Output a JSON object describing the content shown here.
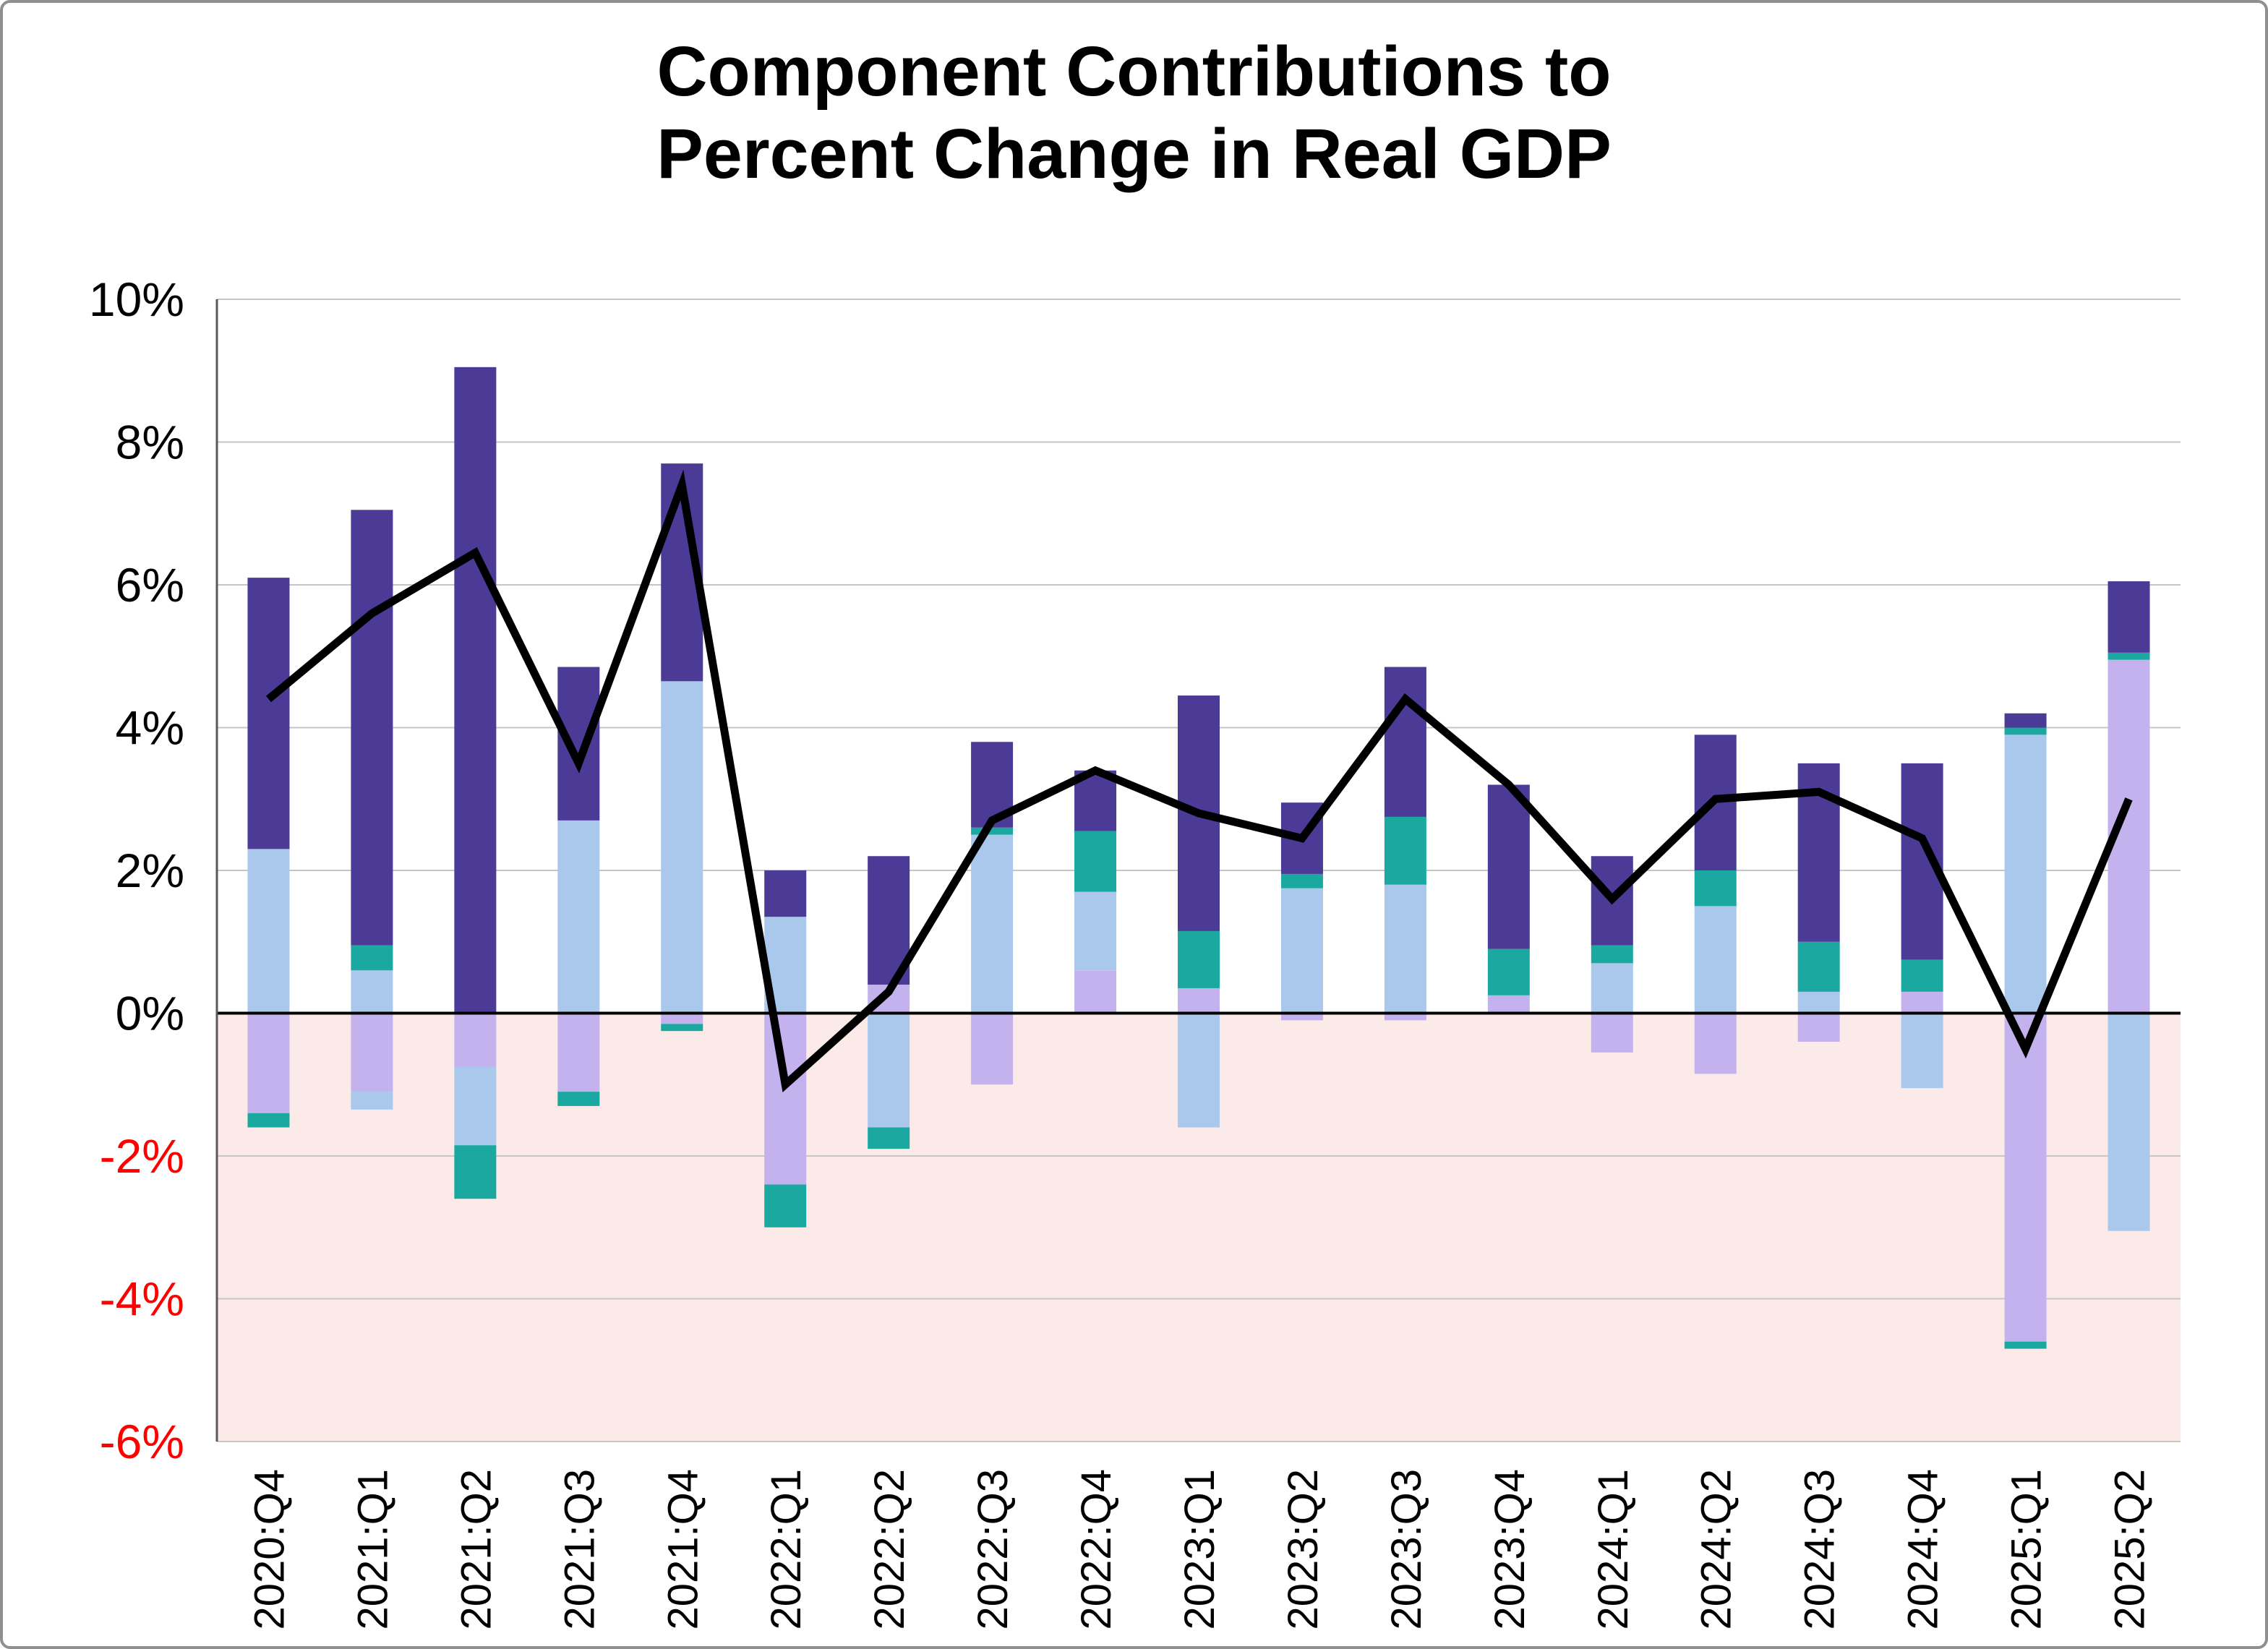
{
  "chart_data": {
    "type": "bar",
    "stacked": true,
    "overlay": "line",
    "title": "Component Contributions to Percent Change in Real GDP",
    "title_lines": [
      "Component Contributions to",
      "Percent Change in Real GDP"
    ],
    "xlabel": "",
    "ylabel": "",
    "ylim": [
      -6,
      10
    ],
    "grid": "horizontal",
    "legend_position": "none",
    "yticks": [
      {
        "value": 10,
        "label": "10%"
      },
      {
        "value": 8,
        "label": "8%"
      },
      {
        "value": 6,
        "label": "6%"
      },
      {
        "value": 4,
        "label": "4%"
      },
      {
        "value": 2,
        "label": "2%"
      },
      {
        "value": 0,
        "label": "0%"
      },
      {
        "value": -2,
        "label": "-2%"
      },
      {
        "value": -4,
        "label": "-4%"
      },
      {
        "value": -6,
        "label": "-6%"
      }
    ],
    "categories": [
      "2020:Q4",
      "2021:Q1",
      "2021:Q2",
      "2021:Q3",
      "2021:Q4",
      "2022:Q1",
      "2022:Q2",
      "2022:Q3",
      "2022:Q4",
      "2023:Q1",
      "2023:Q2",
      "2023:Q3",
      "2023:Q4",
      "2024:Q1",
      "2024:Q2",
      "2024:Q3",
      "2024:Q4",
      "2025:Q1",
      "2025:Q2"
    ],
    "bars": [
      {
        "segments": [
          {
            "color": "lightBlue",
            "value": 2.3
          },
          {
            "color": "darkPurple",
            "value": 3.8
          },
          {
            "color": "lavender",
            "value": -1.4
          },
          {
            "color": "teal",
            "value": -0.2
          }
        ]
      },
      {
        "segments": [
          {
            "color": "lightBlue",
            "value": 0.6
          },
          {
            "color": "teal",
            "value": 0.35
          },
          {
            "color": "darkPurple",
            "value": 6.1
          },
          {
            "color": "lavender",
            "value": -1.1
          },
          {
            "color": "lightBlue",
            "value": -0.25
          }
        ]
      },
      {
        "segments": [
          {
            "color": "darkPurple",
            "value": 9.05
          },
          {
            "color": "lavender",
            "value": -0.75
          },
          {
            "color": "lightBlue",
            "value": -1.1
          },
          {
            "color": "teal",
            "value": -0.75
          }
        ]
      },
      {
        "segments": [
          {
            "color": "lightBlue",
            "value": 2.7
          },
          {
            "color": "darkPurple",
            "value": 2.15
          },
          {
            "color": "lavender",
            "value": -1.1
          },
          {
            "color": "teal",
            "value": -0.2
          }
        ]
      },
      {
        "segments": [
          {
            "color": "lightBlue",
            "value": 4.65
          },
          {
            "color": "darkPurple",
            "value": 3.05
          },
          {
            "color": "lavender",
            "value": -0.15
          },
          {
            "color": "teal",
            "value": -0.1
          }
        ]
      },
      {
        "segments": [
          {
            "color": "lightBlue",
            "value": 1.35
          },
          {
            "color": "darkPurple",
            "value": 0.65
          },
          {
            "color": "lavender",
            "value": -2.4
          },
          {
            "color": "teal",
            "value": -0.6
          }
        ]
      },
      {
        "segments": [
          {
            "color": "lavender",
            "value": 0.4
          },
          {
            "color": "darkPurple",
            "value": 1.8
          },
          {
            "color": "lightBlue",
            "value": -1.6
          },
          {
            "color": "teal",
            "value": -0.3
          }
        ]
      },
      {
        "segments": [
          {
            "color": "lightBlue",
            "value": 2.5
          },
          {
            "color": "teal",
            "value": 0.1
          },
          {
            "color": "darkPurple",
            "value": 1.2
          },
          {
            "color": "lavender",
            "value": -1.0
          }
        ]
      },
      {
        "segments": [
          {
            "color": "lavender",
            "value": 0.6
          },
          {
            "color": "lightBlue",
            "value": 1.1
          },
          {
            "color": "teal",
            "value": 0.85
          },
          {
            "color": "darkPurple",
            "value": 0.85
          }
        ]
      },
      {
        "segments": [
          {
            "color": "lavender",
            "value": 0.35
          },
          {
            "color": "teal",
            "value": 0.8
          },
          {
            "color": "darkPurple",
            "value": 3.3
          },
          {
            "color": "lightBlue",
            "value": -1.6
          }
        ]
      },
      {
        "segments": [
          {
            "color": "lightBlue",
            "value": 1.75
          },
          {
            "color": "teal",
            "value": 0.2
          },
          {
            "color": "darkPurple",
            "value": 1.0
          },
          {
            "color": "lavender",
            "value": -0.1
          }
        ]
      },
      {
        "segments": [
          {
            "color": "lightBlue",
            "value": 1.8
          },
          {
            "color": "teal",
            "value": 0.95
          },
          {
            "color": "darkPurple",
            "value": 2.1
          },
          {
            "color": "lavender",
            "value": -0.1
          }
        ]
      },
      {
        "segments": [
          {
            "color": "lavender",
            "value": 0.25
          },
          {
            "color": "teal",
            "value": 0.65
          },
          {
            "color": "darkPurple",
            "value": 2.3
          }
        ]
      },
      {
        "segments": [
          {
            "color": "lightBlue",
            "value": 0.7
          },
          {
            "color": "teal",
            "value": 0.25
          },
          {
            "color": "darkPurple",
            "value": 1.25
          },
          {
            "color": "lavender",
            "value": -0.55
          }
        ]
      },
      {
        "segments": [
          {
            "color": "lightBlue",
            "value": 1.5
          },
          {
            "color": "teal",
            "value": 0.5
          },
          {
            "color": "darkPurple",
            "value": 1.9
          },
          {
            "color": "lavender",
            "value": -0.85
          }
        ]
      },
      {
        "segments": [
          {
            "color": "lightBlue",
            "value": 0.3
          },
          {
            "color": "teal",
            "value": 0.7
          },
          {
            "color": "darkPurple",
            "value": 2.5
          },
          {
            "color": "lavender",
            "value": -0.4
          }
        ]
      },
      {
        "segments": [
          {
            "color": "lavender",
            "value": 0.3
          },
          {
            "color": "teal",
            "value": 0.45
          },
          {
            "color": "darkPurple",
            "value": 2.75
          },
          {
            "color": "lightBlue",
            "value": -1.05
          }
        ]
      },
      {
        "segments": [
          {
            "color": "lightBlue",
            "value": 3.9
          },
          {
            "color": "teal",
            "value": 0.1
          },
          {
            "color": "darkPurple",
            "value": 0.2
          },
          {
            "color": "lavender",
            "value": -4.6
          },
          {
            "color": "teal",
            "value": -0.1
          }
        ]
      },
      {
        "segments": [
          {
            "color": "lavender",
            "value": 4.95
          },
          {
            "color": "teal",
            "value": 0.1
          },
          {
            "color": "darkPurple",
            "value": 1.0
          },
          {
            "color": "lightBlue",
            "value": -3.05
          }
        ]
      }
    ],
    "line": {
      "name": "percent-change-in-real-gdp",
      "values": [
        4.4,
        5.6,
        6.45,
        3.5,
        7.4,
        -1.0,
        0.3,
        2.7,
        3.4,
        2.8,
        2.45,
        4.4,
        3.2,
        1.6,
        3.0,
        3.1,
        2.45,
        -0.5,
        3.0
      ]
    },
    "colors": {
      "darkPurple": "#4b3a96",
      "lightBlue": "#a9c8ec",
      "lavender": "#c4b2ee",
      "teal": "#1ba8a0",
      "gdpLine": "#000000",
      "zeroLine": "#000000",
      "grid": "#c6c6c6",
      "axis": "#595959",
      "negativeRegion": "#fceae8",
      "negativeTickText": "#fe0000",
      "tickText": "#000000"
    }
  }
}
